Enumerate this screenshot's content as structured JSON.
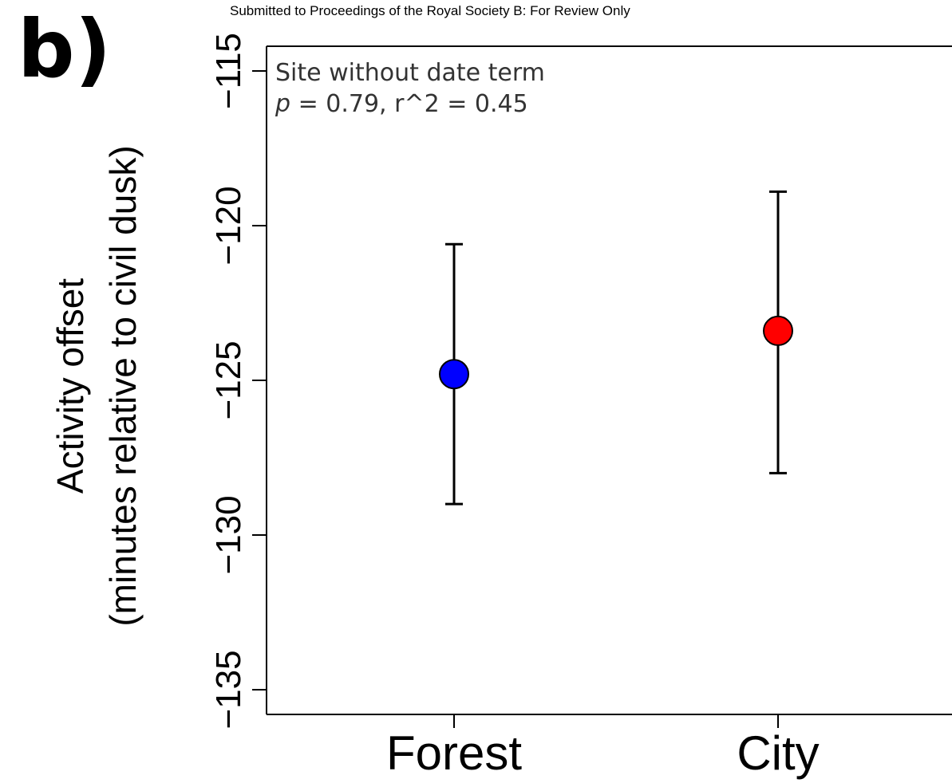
{
  "header": {
    "text": "Submitted to Proceedings of the Royal Society B: For Review Only"
  },
  "panel_label": "b)",
  "annotation": {
    "line1": "Site without date term",
    "p_symbol": "p",
    "line2_rest": " = 0.79, r^2 = 0.45"
  },
  "chart_data": {
    "type": "scatter",
    "title": "",
    "ylabel_line1": "Activity offset",
    "ylabel_line2": "(minutes relative to civil dusk)",
    "xlabel": "",
    "categories": [
      "Forest",
      "City"
    ],
    "yticks": [
      -115,
      -120,
      -125,
      -130,
      -135
    ],
    "ytick_labels": [
      "−115",
      "−120",
      "−125",
      "−130",
      "−135"
    ],
    "ylim": [
      -135.8,
      -114.2
    ],
    "grid": false,
    "series": [
      {
        "values": [
          -124.8,
          -123.4
        ],
        "lower": [
          -129.0,
          -128.0
        ],
        "upper": [
          -120.6,
          -118.9
        ],
        "colors": [
          "#0000ff",
          "#ff0000"
        ]
      }
    ]
  }
}
